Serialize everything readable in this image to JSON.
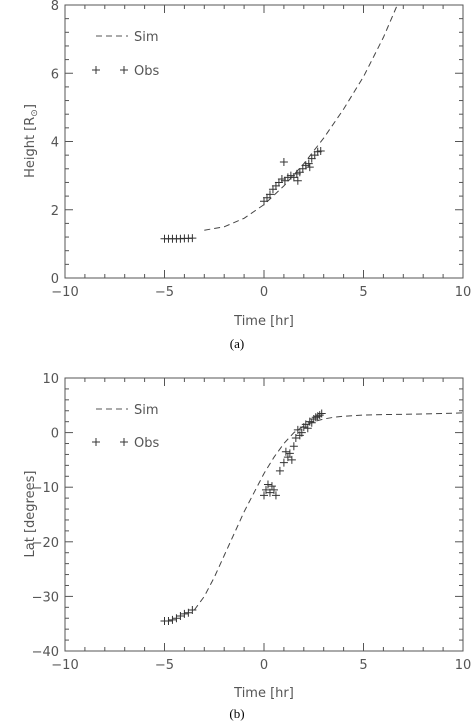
{
  "chart_data": [
    {
      "type": "line",
      "panel_label": "(a)",
      "xlabel": "Time [hr]",
      "ylabel_main": "Height [R",
      "ylabel_sub": "⊙",
      "ylabel_end": "]",
      "xlim": [
        -10,
        10
      ],
      "ylim": [
        0,
        8
      ],
      "xticks": [
        -10,
        -5,
        0,
        5,
        10
      ],
      "xtick_labels": [
        "−10",
        "−5",
        "0",
        "5",
        "10"
      ],
      "yticks": [
        0,
        2,
        4,
        6,
        8
      ],
      "ytick_labels": [
        "0",
        "2",
        "4",
        "6",
        "8"
      ],
      "legend": {
        "placement": "top-left",
        "entries": [
          "Sim",
          "Obs"
        ]
      },
      "series": [
        {
          "name": "Sim",
          "style": "dashed",
          "x": [
            -3.0,
            -2.0,
            -1.0,
            0.0,
            1.0,
            2.0,
            3.0,
            4.0,
            5.0,
            6.0,
            6.7
          ],
          "y": [
            1.4,
            1.5,
            1.75,
            2.15,
            2.7,
            3.35,
            4.1,
            4.95,
            5.9,
            7.05,
            8.0
          ]
        },
        {
          "name": "Obs",
          "style": "plus",
          "x": [
            -5.0,
            -4.8,
            -4.6,
            -4.4,
            -4.2,
            -4.0,
            -3.8,
            -3.6,
            0.0,
            0.15,
            0.3,
            0.45,
            0.6,
            0.75,
            0.9,
            1.05,
            1.2,
            1.35,
            1.5,
            1.65,
            1.8,
            1.95,
            2.1,
            2.25,
            2.4,
            2.55,
            2.7,
            2.85,
            1.0,
            1.7,
            2.3
          ],
          "y": [
            1.15,
            1.15,
            1.15,
            1.15,
            1.15,
            1.16,
            1.16,
            1.17,
            2.25,
            2.35,
            2.45,
            2.6,
            2.7,
            2.8,
            2.9,
            2.85,
            2.95,
            3.0,
            2.95,
            3.05,
            3.1,
            3.2,
            3.3,
            3.35,
            3.5,
            3.6,
            3.7,
            3.72,
            3.4,
            2.85,
            3.25
          ]
        }
      ]
    },
    {
      "type": "line",
      "panel_label": "(b)",
      "xlabel": "Time [hr]",
      "ylabel": "Lat [degrees]",
      "xlim": [
        -10,
        10
      ],
      "ylim": [
        -40,
        10
      ],
      "xticks": [
        -10,
        -5,
        0,
        5,
        10
      ],
      "xtick_labels": [
        "−10",
        "−5",
        "0",
        "5",
        "10"
      ],
      "yticks": [
        -40,
        -30,
        -20,
        -10,
        0,
        10
      ],
      "ytick_labels": [
        "−40",
        "−30",
        "−20",
        "−10",
        "0",
        "10"
      ],
      "legend": {
        "placement": "top-left",
        "entries": [
          "Sim",
          "Obs"
        ]
      },
      "series": [
        {
          "name": "Sim",
          "style": "dashed",
          "x": [
            -3.5,
            -3.0,
            -2.5,
            -2.0,
            -1.5,
            -1.0,
            -0.5,
            0.0,
            0.5,
            1.0,
            1.5,
            2.0,
            2.5,
            3.0,
            3.5,
            4.0,
            5.0,
            6.0,
            8.0,
            10.0
          ],
          "y": [
            -32.5,
            -30.0,
            -26.5,
            -22.5,
            -18.5,
            -14.5,
            -11.0,
            -7.5,
            -4.5,
            -2.0,
            0.0,
            1.2,
            2.0,
            2.5,
            2.8,
            3.0,
            3.2,
            3.3,
            3.4,
            3.6
          ]
        },
        {
          "name": "Obs",
          "style": "plus",
          "x": [
            -5.0,
            -4.8,
            -4.6,
            -4.4,
            -4.2,
            -4.0,
            -3.8,
            -3.6,
            0.0,
            0.1,
            0.2,
            0.3,
            0.4,
            0.5,
            0.6,
            0.8,
            1.0,
            1.1,
            1.2,
            1.3,
            1.4,
            1.5,
            1.6,
            1.7,
            1.8,
            1.9,
            2.0,
            2.1,
            2.2,
            2.3,
            2.4,
            2.5,
            2.6,
            2.7,
            2.8,
            2.9
          ],
          "y": [
            -34.5,
            -34.5,
            -34.3,
            -34.0,
            -33.6,
            -33.2,
            -33.0,
            -32.5,
            -11.5,
            -10.5,
            -9.5,
            -11.0,
            -9.8,
            -10.5,
            -11.5,
            -7.0,
            -5.5,
            -3.5,
            -4.5,
            -3.8,
            -5.0,
            -2.5,
            -1.0,
            0.5,
            -0.5,
            0.0,
            1.0,
            1.5,
            0.8,
            2.0,
            1.8,
            2.5,
            2.8,
            3.0,
            3.2,
            3.5
          ]
        }
      ]
    }
  ]
}
